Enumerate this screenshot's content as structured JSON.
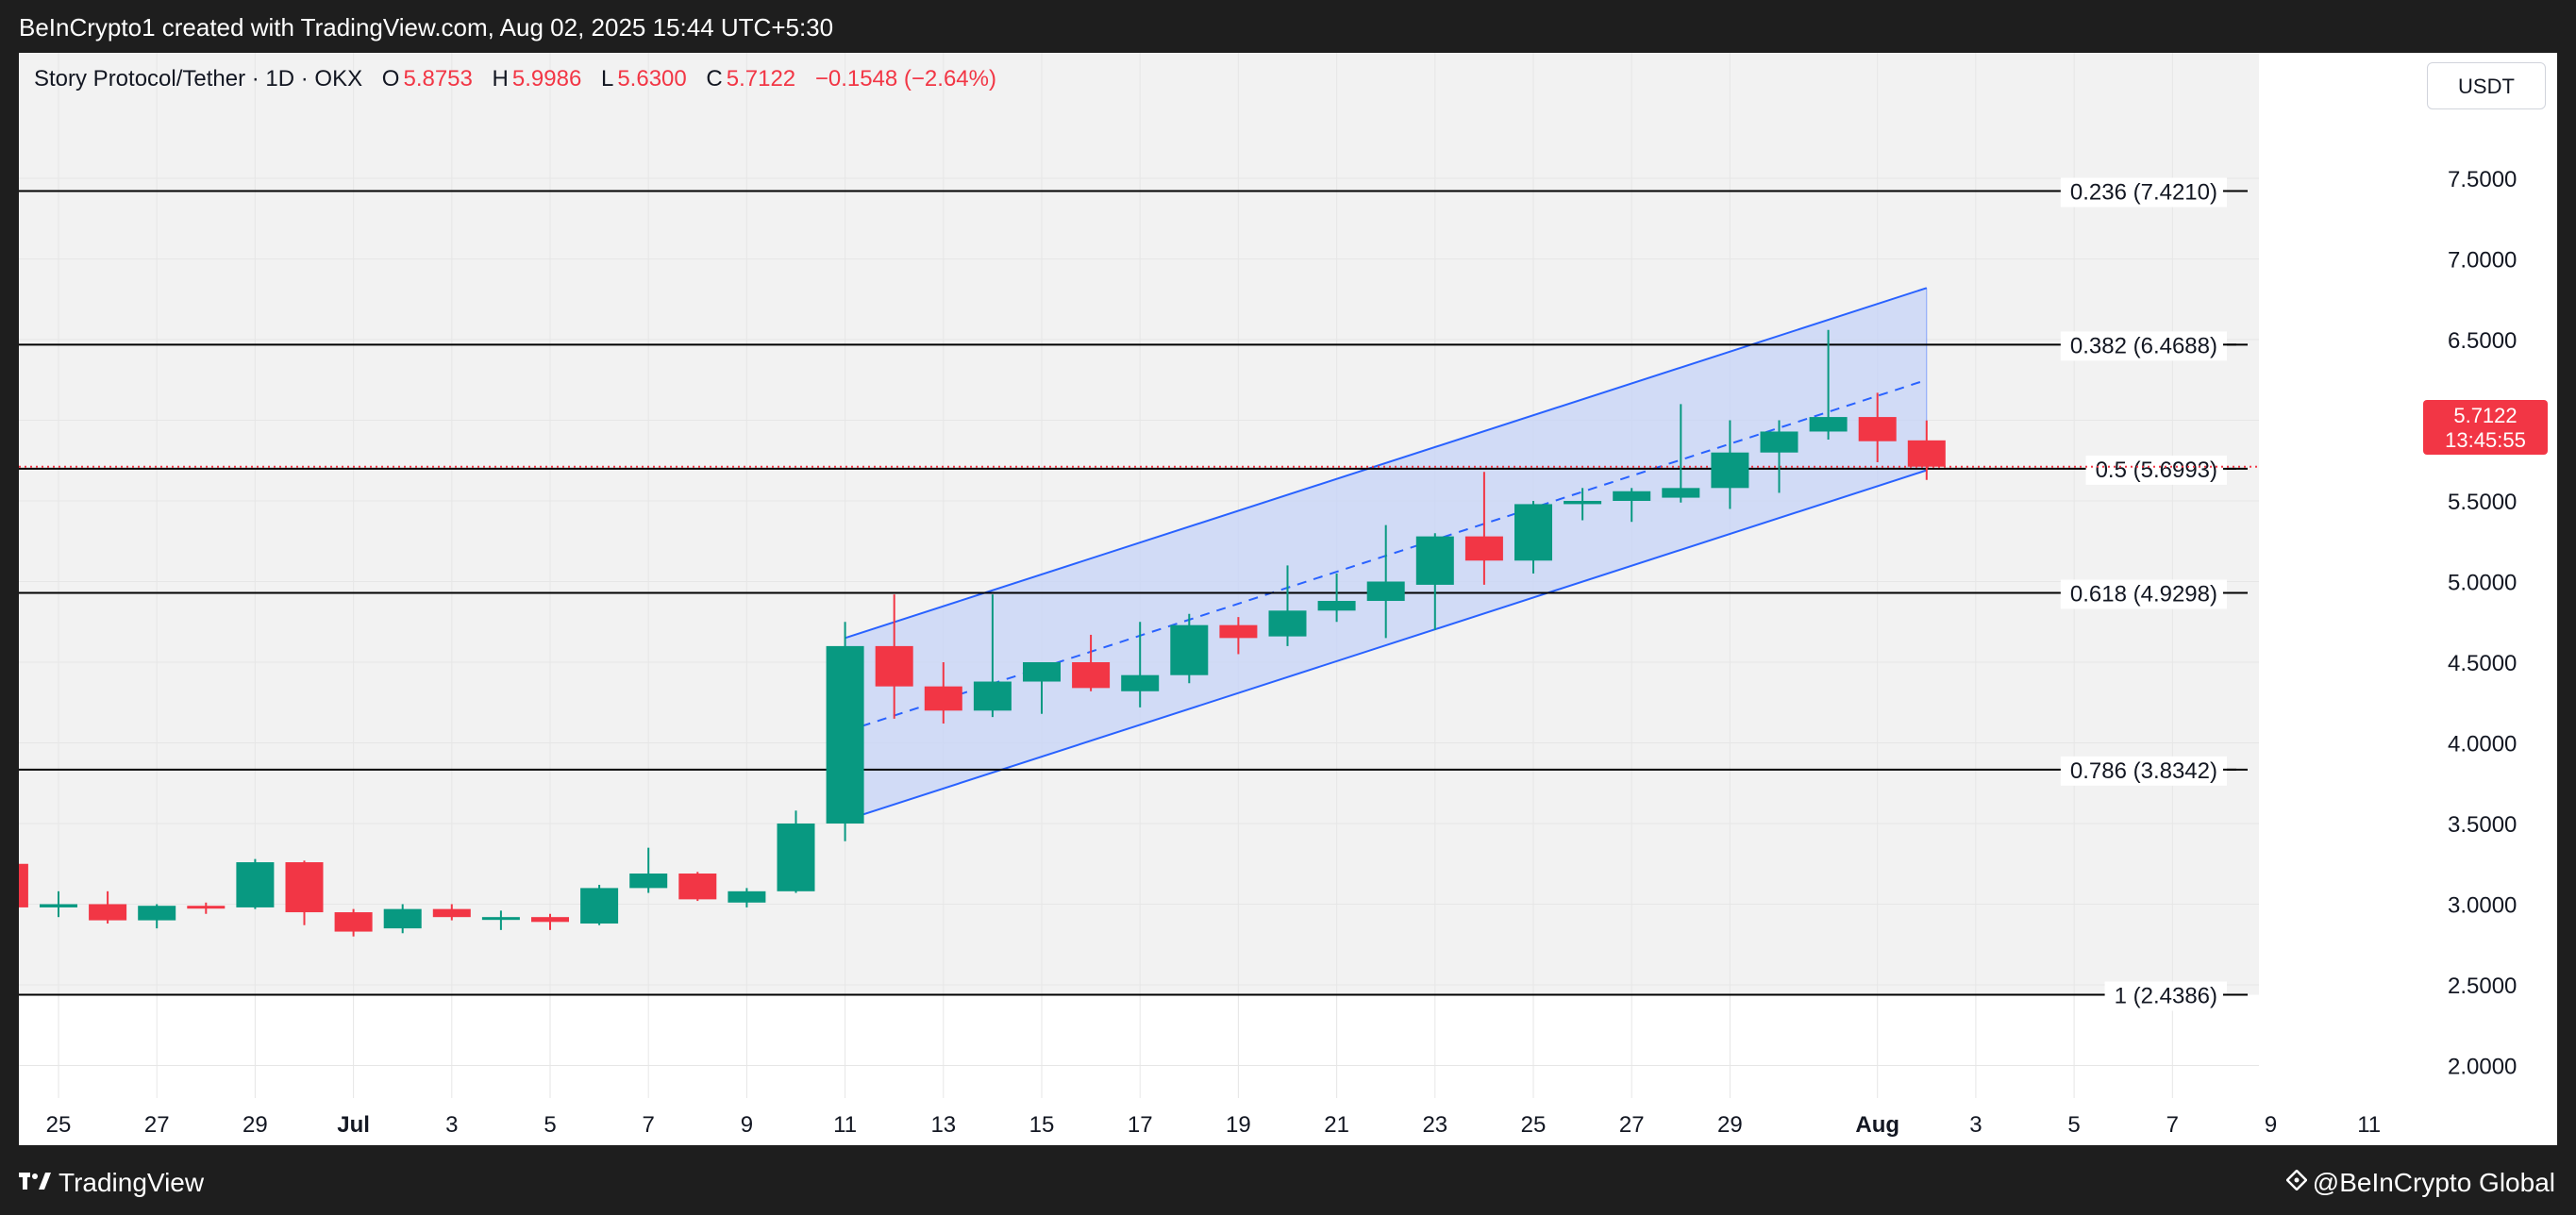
{
  "header": {
    "caption": "BeInCrypto1 created with TradingView.com, Aug 02, 2025 15:44 UTC+5:30"
  },
  "legend": {
    "symbol": "Story Protocol/Tether · 1D · OKX",
    "open_label": "O",
    "open_value": "5.8753",
    "high_label": "H",
    "high_value": "5.9986",
    "low_label": "L",
    "low_value": "5.6300",
    "close_label": "C",
    "close_value": "5.7122",
    "change": "−0.1548 (−2.64%)"
  },
  "currency": "USDT",
  "last_price": {
    "value": "5.7122",
    "countdown": "13:45:55"
  },
  "footer": {
    "brand": "TradingView",
    "watermark": "@BeInCrypto Global"
  },
  "colors": {
    "up": "#089981",
    "down": "#f23645",
    "channel_line": "#2962ff",
    "channel_fill": "#c6d3f7",
    "fib_line": "#000000"
  },
  "chart_data": {
    "type": "candlestick",
    "ylim": [
      1.5,
      7.75
    ],
    "y_ticks": [
      "2.0000",
      "2.5000",
      "3.0000",
      "3.5000",
      "4.0000",
      "4.5000",
      "5.0000",
      "5.5000",
      "6.0000",
      "6.5000",
      "7.0000",
      "7.5000"
    ],
    "x_ticks": [
      {
        "day": 0,
        "label": "25"
      },
      {
        "day": 2,
        "label": "27"
      },
      {
        "day": 4,
        "label": "29"
      },
      {
        "day": 6,
        "label": "Jul"
      },
      {
        "day": 8,
        "label": "3"
      },
      {
        "day": 10,
        "label": "5"
      },
      {
        "day": 12,
        "label": "7"
      },
      {
        "day": 14,
        "label": "9"
      },
      {
        "day": 16,
        "label": "11"
      },
      {
        "day": 18,
        "label": "13"
      },
      {
        "day": 20,
        "label": "15"
      },
      {
        "day": 22,
        "label": "17"
      },
      {
        "day": 24,
        "label": "19"
      },
      {
        "day": 26,
        "label": "21"
      },
      {
        "day": 28,
        "label": "23"
      },
      {
        "day": 30,
        "label": "25"
      },
      {
        "day": 32,
        "label": "27"
      },
      {
        "day": 34,
        "label": "29"
      },
      {
        "day": 37,
        "label": "Aug"
      },
      {
        "day": 39,
        "label": "3"
      },
      {
        "day": 41,
        "label": "5"
      },
      {
        "day": 43,
        "label": "7"
      },
      {
        "day": 45,
        "label": "9"
      },
      {
        "day": 47,
        "label": "11"
      }
    ],
    "candles": [
      {
        "date": "2025-06-24",
        "o": 3.25,
        "h": 3.28,
        "l": 2.95,
        "c": 2.98
      },
      {
        "date": "2025-06-25",
        "o": 2.98,
        "h": 3.08,
        "l": 2.92,
        "c": 3.0
      },
      {
        "date": "2025-06-26",
        "o": 3.0,
        "h": 3.08,
        "l": 2.88,
        "c": 2.9
      },
      {
        "date": "2025-06-27",
        "o": 2.9,
        "h": 3.0,
        "l": 2.85,
        "c": 2.99
      },
      {
        "date": "2025-06-28",
        "o": 2.99,
        "h": 3.01,
        "l": 2.94,
        "c": 2.98
      },
      {
        "date": "2025-06-29",
        "o": 2.98,
        "h": 3.28,
        "l": 2.97,
        "c": 3.26
      },
      {
        "date": "2025-06-30",
        "o": 3.26,
        "h": 3.27,
        "l": 2.87,
        "c": 2.95
      },
      {
        "date": "2025-07-01",
        "o": 2.95,
        "h": 2.97,
        "l": 2.8,
        "c": 2.83
      },
      {
        "date": "2025-07-02",
        "o": 2.85,
        "h": 3.0,
        "l": 2.82,
        "c": 2.97
      },
      {
        "date": "2025-07-03",
        "o": 2.97,
        "h": 3.0,
        "l": 2.9,
        "c": 2.92
      },
      {
        "date": "2025-07-04",
        "o": 2.92,
        "h": 2.96,
        "l": 2.84,
        "c": 2.92
      },
      {
        "date": "2025-07-05",
        "o": 2.92,
        "h": 2.94,
        "l": 2.84,
        "c": 2.89
      },
      {
        "date": "2025-07-06",
        "o": 2.88,
        "h": 3.12,
        "l": 2.87,
        "c": 3.1
      },
      {
        "date": "2025-07-07",
        "o": 3.1,
        "h": 3.35,
        "l": 3.07,
        "c": 3.19
      },
      {
        "date": "2025-07-08",
        "o": 3.19,
        "h": 3.2,
        "l": 3.02,
        "c": 3.03
      },
      {
        "date": "2025-07-09",
        "o": 3.01,
        "h": 3.1,
        "l": 2.98,
        "c": 3.08
      },
      {
        "date": "2025-07-10",
        "o": 3.08,
        "h": 3.58,
        "l": 3.07,
        "c": 3.5
      },
      {
        "date": "2025-07-11",
        "o": 3.5,
        "h": 4.75,
        "l": 3.39,
        "c": 4.6
      },
      {
        "date": "2025-07-12",
        "o": 4.6,
        "h": 4.92,
        "l": 4.15,
        "c": 4.35
      },
      {
        "date": "2025-07-13",
        "o": 4.35,
        "h": 4.5,
        "l": 4.12,
        "c": 4.2
      },
      {
        "date": "2025-07-14",
        "o": 4.2,
        "h": 4.92,
        "l": 4.16,
        "c": 4.38
      },
      {
        "date": "2025-07-15",
        "o": 4.38,
        "h": 4.5,
        "l": 4.18,
        "c": 4.5
      },
      {
        "date": "2025-07-16",
        "o": 4.5,
        "h": 4.67,
        "l": 4.32,
        "c": 4.34
      },
      {
        "date": "2025-07-17",
        "o": 4.32,
        "h": 4.75,
        "l": 4.22,
        "c": 4.42
      },
      {
        "date": "2025-07-18",
        "o": 4.42,
        "h": 4.8,
        "l": 4.37,
        "c": 4.73
      },
      {
        "date": "2025-07-19",
        "o": 4.73,
        "h": 4.78,
        "l": 4.55,
        "c": 4.65
      },
      {
        "date": "2025-07-20",
        "o": 4.66,
        "h": 5.1,
        "l": 4.6,
        "c": 4.82
      },
      {
        "date": "2025-07-21",
        "o": 4.82,
        "h": 5.05,
        "l": 4.75,
        "c": 4.88
      },
      {
        "date": "2025-07-22",
        "o": 4.88,
        "h": 5.35,
        "l": 4.65,
        "c": 5.0
      },
      {
        "date": "2025-07-23",
        "o": 4.98,
        "h": 5.3,
        "l": 4.7,
        "c": 5.28
      },
      {
        "date": "2025-07-24",
        "o": 5.28,
        "h": 5.68,
        "l": 4.98,
        "c": 5.13
      },
      {
        "date": "2025-07-25",
        "o": 5.13,
        "h": 5.5,
        "l": 5.05,
        "c": 5.48
      },
      {
        "date": "2025-07-26",
        "o": 5.48,
        "h": 5.58,
        "l": 5.38,
        "c": 5.5
      },
      {
        "date": "2025-07-27",
        "o": 5.5,
        "h": 5.58,
        "l": 5.37,
        "c": 5.56
      },
      {
        "date": "2025-07-28",
        "o": 5.52,
        "h": 6.1,
        "l": 5.49,
        "c": 5.58
      },
      {
        "date": "2025-07-29",
        "o": 5.58,
        "h": 6.0,
        "l": 5.45,
        "c": 5.8
      },
      {
        "date": "2025-07-30",
        "o": 5.8,
        "h": 6.0,
        "l": 5.55,
        "c": 5.93
      },
      {
        "date": "2025-07-31",
        "o": 5.93,
        "h": 6.56,
        "l": 5.88,
        "c": 6.02
      },
      {
        "date": "2025-08-01",
        "o": 6.02,
        "h": 6.17,
        "l": 5.74,
        "c": 5.87
      },
      {
        "date": "2025-08-02",
        "o": 5.8753,
        "h": 5.9986,
        "l": 5.63,
        "c": 5.7122
      }
    ],
    "fib_levels": [
      {
        "value": 7.421,
        "label": "0.236 (7.4210)"
      },
      {
        "value": 6.4688,
        "label": "0.382 (6.4688)"
      },
      {
        "value": 5.6993,
        "label": "0.5 (5.6993)"
      },
      {
        "value": 4.9298,
        "label": "0.618 (4.9298)"
      },
      {
        "value": 3.8342,
        "label": "0.786 (3.8342)"
      },
      {
        "value": 2.4386,
        "label": "1 (2.4386)"
      }
    ],
    "channel": {
      "start_date": "2025-07-11",
      "end_date": "2025-08-02",
      "upper": [
        4.65,
        6.82
      ],
      "middle": [
        4.07,
        6.25
      ],
      "lower": [
        3.52,
        5.69
      ]
    },
    "last_price": 5.7122
  }
}
